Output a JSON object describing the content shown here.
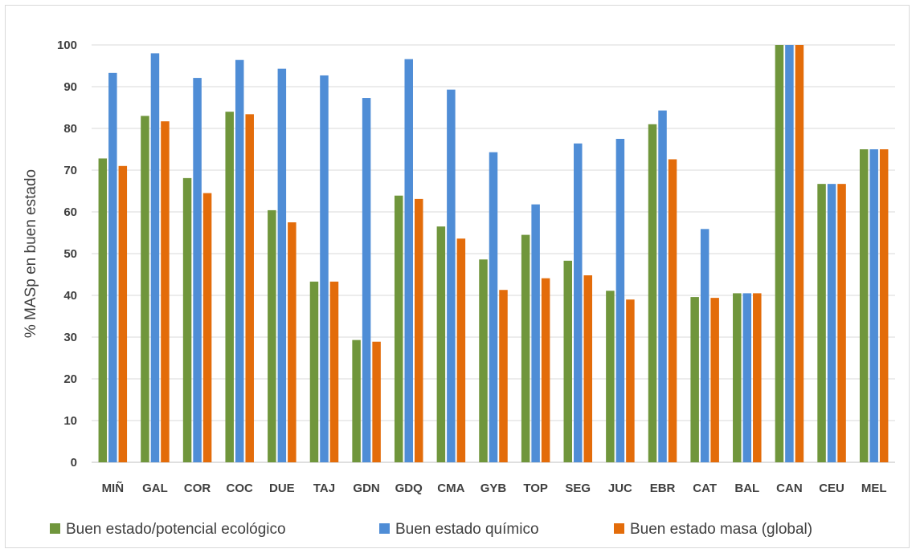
{
  "chart_data": {
    "type": "bar",
    "title": "",
    "xlabel": "",
    "ylabel": "% MASp en buen estado",
    "ylim": [
      0,
      100
    ],
    "yticks": [
      0,
      10,
      20,
      30,
      40,
      50,
      60,
      70,
      80,
      90,
      100
    ],
    "grid": true,
    "legend_position": "bottom",
    "categories": [
      "MIÑ",
      "GAL",
      "COR",
      "COC",
      "DUE",
      "TAJ",
      "GDN",
      "GDQ",
      "CMA",
      "GYB",
      "TOP",
      "SEG",
      "JUC",
      "EBR",
      "CAT",
      "BAL",
      "CAN",
      "CEU",
      "MEL"
    ],
    "series": [
      {
        "name": "Buen estado/potencial ecológico",
        "color": "#70963C",
        "values": [
          72.8,
          83.0,
          68.1,
          84.0,
          60.4,
          43.3,
          29.3,
          63.9,
          56.5,
          48.6,
          54.5,
          48.3,
          41.1,
          81.0,
          39.6,
          40.5,
          100,
          66.7,
          75.0
        ]
      },
      {
        "name": "Buen estado químico",
        "color": "#4F8DD6",
        "values": [
          93.3,
          98.0,
          92.1,
          96.4,
          94.3,
          92.7,
          87.3,
          96.6,
          89.3,
          74.3,
          61.8,
          76.4,
          77.5,
          84.3,
          55.9,
          40.5,
          100,
          66.7,
          75.0
        ]
      },
      {
        "name": "Buen estado masa (global)",
        "color": "#E36C0A",
        "values": [
          71.0,
          81.7,
          64.5,
          83.4,
          57.5,
          43.3,
          28.9,
          63.1,
          53.6,
          41.3,
          44.1,
          44.8,
          39.0,
          72.6,
          39.4,
          40.5,
          100,
          66.7,
          75.0
        ]
      }
    ]
  }
}
